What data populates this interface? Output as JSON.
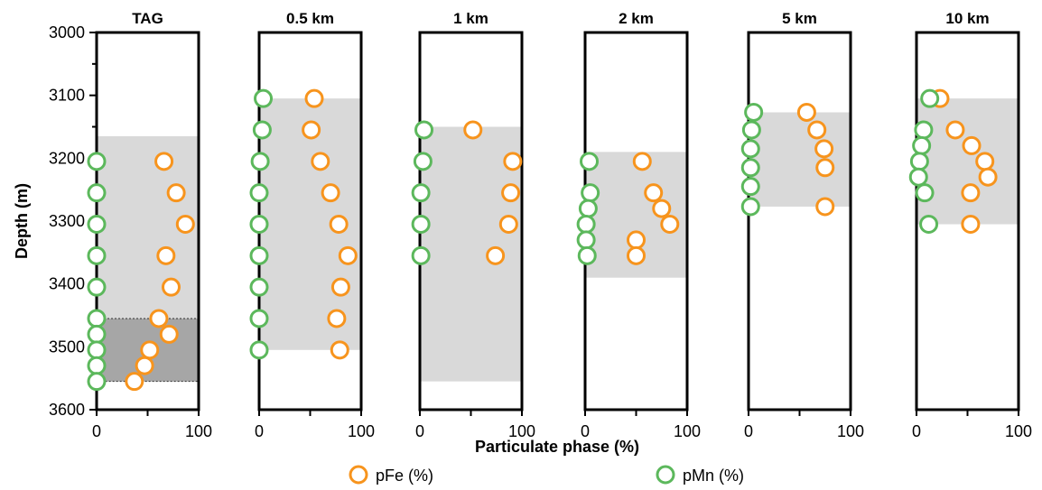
{
  "chart_data": {
    "type": "scatter",
    "xlabel": "Particulate phase (%)",
    "ylabel": "Depth (m)",
    "x_ticks": [
      "0",
      "100"
    ],
    "y_ticks": [
      "3000",
      "3100",
      "3200",
      "3300",
      "3400",
      "3500",
      "3600"
    ],
    "xlim": [
      0,
      100
    ],
    "ylim": [
      3600,
      3000
    ],
    "y_inverted": true,
    "grid": false,
    "legend": {
      "placement": "bottom-center",
      "entries": [
        {
          "label": "pFe (%)",
          "color": "#F7941D"
        },
        {
          "label": "pMn (%)",
          "color": "#5CB85C"
        }
      ]
    },
    "colors": {
      "pFe": "#F7941D",
      "pMn": "#5CB85C",
      "shade_light": "#D9D9D9",
      "shade_dark": "#A6A6A6"
    },
    "panels": [
      {
        "title": "TAG",
        "shaded": [
          {
            "depth_from": 3165,
            "depth_to": 3555,
            "shade": "light"
          },
          {
            "depth_from": 3455,
            "depth_to": 3555,
            "shade": "dark"
          }
        ],
        "pFe": [
          [
            66,
            3205
          ],
          [
            78,
            3255
          ],
          [
            87,
            3305
          ],
          [
            68,
            3355
          ],
          [
            73,
            3405
          ],
          [
            61,
            3455
          ],
          [
            71,
            3480
          ],
          [
            52,
            3505
          ],
          [
            47,
            3530
          ],
          [
            37,
            3555
          ]
        ],
        "pMn": [
          [
            0,
            3205
          ],
          [
            0,
            3255
          ],
          [
            0,
            3305
          ],
          [
            0,
            3355
          ],
          [
            0,
            3405
          ],
          [
            0,
            3455
          ],
          [
            0,
            3480
          ],
          [
            0,
            3505
          ],
          [
            0,
            3530
          ],
          [
            0,
            3555
          ]
        ]
      },
      {
        "title": "0.5 km",
        "shaded": [
          {
            "depth_from": 3105,
            "depth_to": 3505,
            "shade": "light"
          }
        ],
        "pFe": [
          [
            54,
            3105
          ],
          [
            51,
            3155
          ],
          [
            60,
            3205
          ],
          [
            70,
            3255
          ],
          [
            78,
            3305
          ],
          [
            87,
            3355
          ],
          [
            80,
            3405
          ],
          [
            76,
            3455
          ],
          [
            79,
            3505
          ]
        ],
        "pMn": [
          [
            4,
            3105
          ],
          [
            3,
            3155
          ],
          [
            1,
            3205
          ],
          [
            0,
            3255
          ],
          [
            0,
            3305
          ],
          [
            0,
            3355
          ],
          [
            0,
            3405
          ],
          [
            0,
            3455
          ],
          [
            0,
            3505
          ]
        ]
      },
      {
        "title": "1 km",
        "shaded": [
          {
            "depth_from": 3150,
            "depth_to": 3555,
            "shade": "light"
          }
        ],
        "pFe": [
          [
            52,
            3155
          ],
          [
            91,
            3205
          ],
          [
            89,
            3255
          ],
          [
            87,
            3305
          ],
          [
            74,
            3355
          ]
        ],
        "pMn": [
          [
            4,
            3155
          ],
          [
            3,
            3205
          ],
          [
            1,
            3255
          ],
          [
            1,
            3305
          ],
          [
            1,
            3355
          ]
        ]
      },
      {
        "title": "2 km",
        "shaded": [
          {
            "depth_from": 3190,
            "depth_to": 3390,
            "shade": "light"
          }
        ],
        "pFe": [
          [
            56,
            3205
          ],
          [
            67,
            3255
          ],
          [
            75,
            3280
          ],
          [
            83,
            3305
          ],
          [
            50,
            3330
          ],
          [
            50,
            3355
          ]
        ],
        "pMn": [
          [
            4,
            3205
          ],
          [
            5,
            3255
          ],
          [
            3,
            3280
          ],
          [
            1,
            3305
          ],
          [
            1,
            3330
          ],
          [
            2,
            3355
          ]
        ]
      },
      {
        "title": "5 km",
        "shaded": [
          {
            "depth_from": 3127,
            "depth_to": 3277,
            "shade": "light"
          }
        ],
        "pFe": [
          [
            57,
            3127
          ],
          [
            67,
            3155
          ],
          [
            74,
            3185
          ],
          [
            75,
            3215
          ],
          [
            75,
            3277
          ]
        ],
        "pMn": [
          [
            5,
            3127
          ],
          [
            3,
            3155
          ],
          [
            2,
            3185
          ],
          [
            2,
            3215
          ],
          [
            2,
            3245
          ],
          [
            2,
            3277
          ]
        ]
      },
      {
        "title": "10 km",
        "shaded": [
          {
            "depth_from": 3105,
            "depth_to": 3305,
            "shade": "light"
          }
        ],
        "pFe": [
          [
            23,
            3105
          ],
          [
            38,
            3155
          ],
          [
            54,
            3180
          ],
          [
            67,
            3205
          ],
          [
            70,
            3230
          ],
          [
            53,
            3255
          ],
          [
            53,
            3305
          ]
        ],
        "pMn": [
          [
            13,
            3105
          ],
          [
            7,
            3155
          ],
          [
            5,
            3180
          ],
          [
            3,
            3205
          ],
          [
            2,
            3230
          ],
          [
            8,
            3255
          ],
          [
            12,
            3305
          ]
        ]
      }
    ]
  }
}
